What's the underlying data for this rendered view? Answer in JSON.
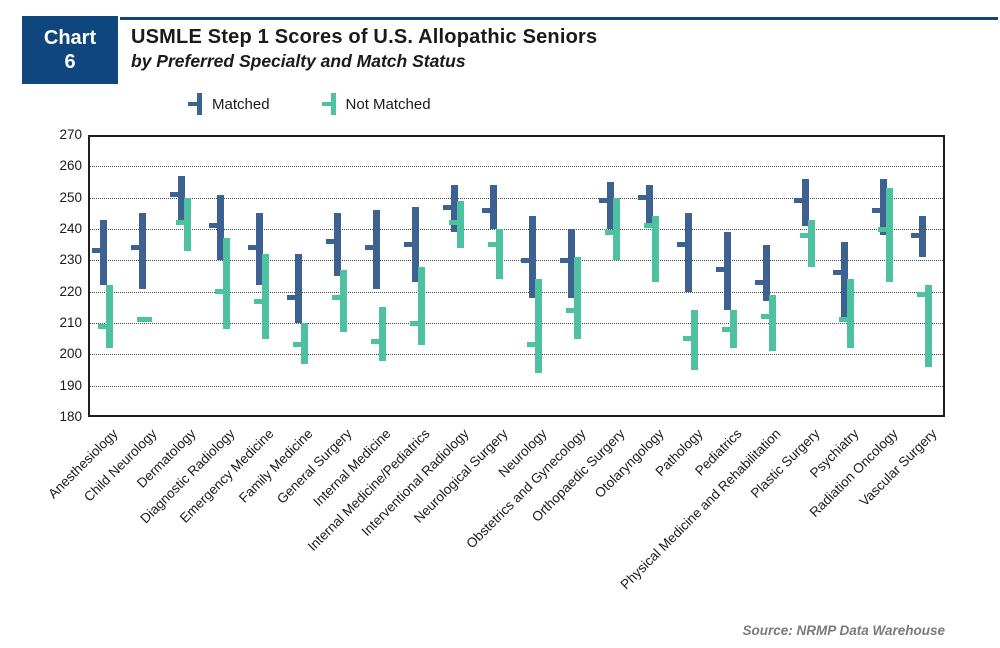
{
  "header": {
    "badge_top": "Chart",
    "badge_number": "6",
    "title": "USMLE Step 1 Scores of U.S. Allopathic Seniors",
    "subtitle": "by Preferred Specialty and Match Status"
  },
  "legend": {
    "items": [
      {
        "label": "Matched",
        "color": "#3d6191"
      },
      {
        "label": "Not Matched",
        "color": "#4ec1a1"
      }
    ]
  },
  "source_note": "Source: NRMP Data Warehouse",
  "colors": {
    "accent_navy": "#10467e",
    "matched": "#3d6191",
    "not_matched": "#4ec1a1",
    "source_gray": "#7a7a7a"
  },
  "chart_data": {
    "type": "range-bar",
    "title": "USMLE Step 1 Scores of U.S. Allopathic Seniors by Preferred Specialty and Match Status",
    "ylabel": "",
    "xlabel": "",
    "ylim": [
      180,
      270
    ],
    "yticks": [
      180,
      190,
      200,
      210,
      220,
      230,
      240,
      250,
      260,
      270
    ],
    "grid": "horizontal-dotted",
    "legend_position": "top",
    "categories": [
      "Anesthesiology",
      "Child Neurology",
      "Dermatology",
      "Diagnostic Radiology",
      "Emergency Medicine",
      "Family Medicine",
      "General Surgery",
      "Internal Medicine",
      "Internal Medicine/Pediatrics",
      "Interventional Radiology",
      "Neurological Surgery",
      "Neurology",
      "Obstetrics and Gynecology",
      "Orthopaedic Surgery",
      "Otolaryngology",
      "Pathology",
      "Pediatrics",
      "Physical Medicine and Rehabilitation",
      "Plastic Surgery",
      "Psychiatry",
      "Radiation Oncology",
      "Vascular Surgery"
    ],
    "series": [
      {
        "name": "Matched",
        "color": "#3d6191",
        "ranges": [
          [
            222,
            243
          ],
          [
            221,
            245
          ],
          [
            243,
            257
          ],
          [
            230,
            251
          ],
          [
            222,
            245
          ],
          [
            210,
            232
          ],
          [
            225,
            245
          ],
          [
            221,
            246
          ],
          [
            223,
            247
          ],
          [
            239,
            254
          ],
          [
            240,
            254
          ],
          [
            218,
            244
          ],
          [
            218,
            240
          ],
          [
            240,
            255
          ],
          [
            242,
            254
          ],
          [
            220,
            245
          ],
          [
            214,
            239
          ],
          [
            217,
            235
          ],
          [
            241,
            256
          ],
          [
            212,
            236
          ],
          [
            238,
            256
          ],
          [
            231,
            244
          ]
        ],
        "means": [
          233,
          234,
          251,
          241,
          234,
          218,
          236,
          234,
          235,
          247,
          246,
          230,
          230,
          249,
          250,
          235,
          227,
          223,
          249,
          226,
          246,
          238
        ]
      },
      {
        "name": "Not Matched",
        "color": "#4ec1a1",
        "ranges": [
          [
            202,
            222
          ],
          [
            211,
            211
          ],
          [
            233,
            250
          ],
          [
            208,
            237
          ],
          [
            205,
            232
          ],
          [
            197,
            210
          ],
          [
            207,
            227
          ],
          [
            198,
            215
          ],
          [
            203,
            228
          ],
          [
            234,
            249
          ],
          [
            224,
            240
          ],
          [
            194,
            224
          ],
          [
            205,
            231
          ],
          [
            230,
            250
          ],
          [
            223,
            244
          ],
          [
            195,
            214
          ],
          [
            202,
            214
          ],
          [
            201,
            219
          ],
          [
            228,
            243
          ],
          [
            202,
            224
          ],
          [
            223,
            253
          ],
          [
            196,
            222
          ]
        ],
        "means": [
          209,
          211,
          242,
          220,
          217,
          203,
          218,
          204,
          210,
          242,
          235,
          203,
          214,
          239,
          241,
          205,
          208,
          212,
          238,
          211,
          240,
          219
        ]
      }
    ]
  }
}
